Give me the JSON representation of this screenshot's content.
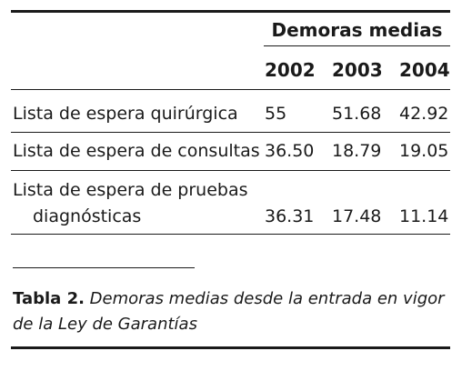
{
  "table": {
    "group_header": "Demoras medias",
    "years": [
      "2002",
      "2003",
      "2004"
    ],
    "rows": [
      {
        "label": "Lista de espera quirúrgica",
        "values": [
          "55",
          "51.68",
          "42.92"
        ]
      },
      {
        "label": "Lista de espera de consultas",
        "values": [
          "36.50",
          "18.79",
          "19.05"
        ]
      },
      {
        "label_line1": "Lista de espera de pruebas",
        "label_line2": "diagnósticas",
        "values": [
          "36.31",
          "17.48",
          "11.14"
        ]
      }
    ]
  },
  "caption": {
    "label": "Tabla 2.",
    "line1": "Demoras medias desde la entrada en vigor",
    "line2": "de la Ley de Garantías"
  }
}
